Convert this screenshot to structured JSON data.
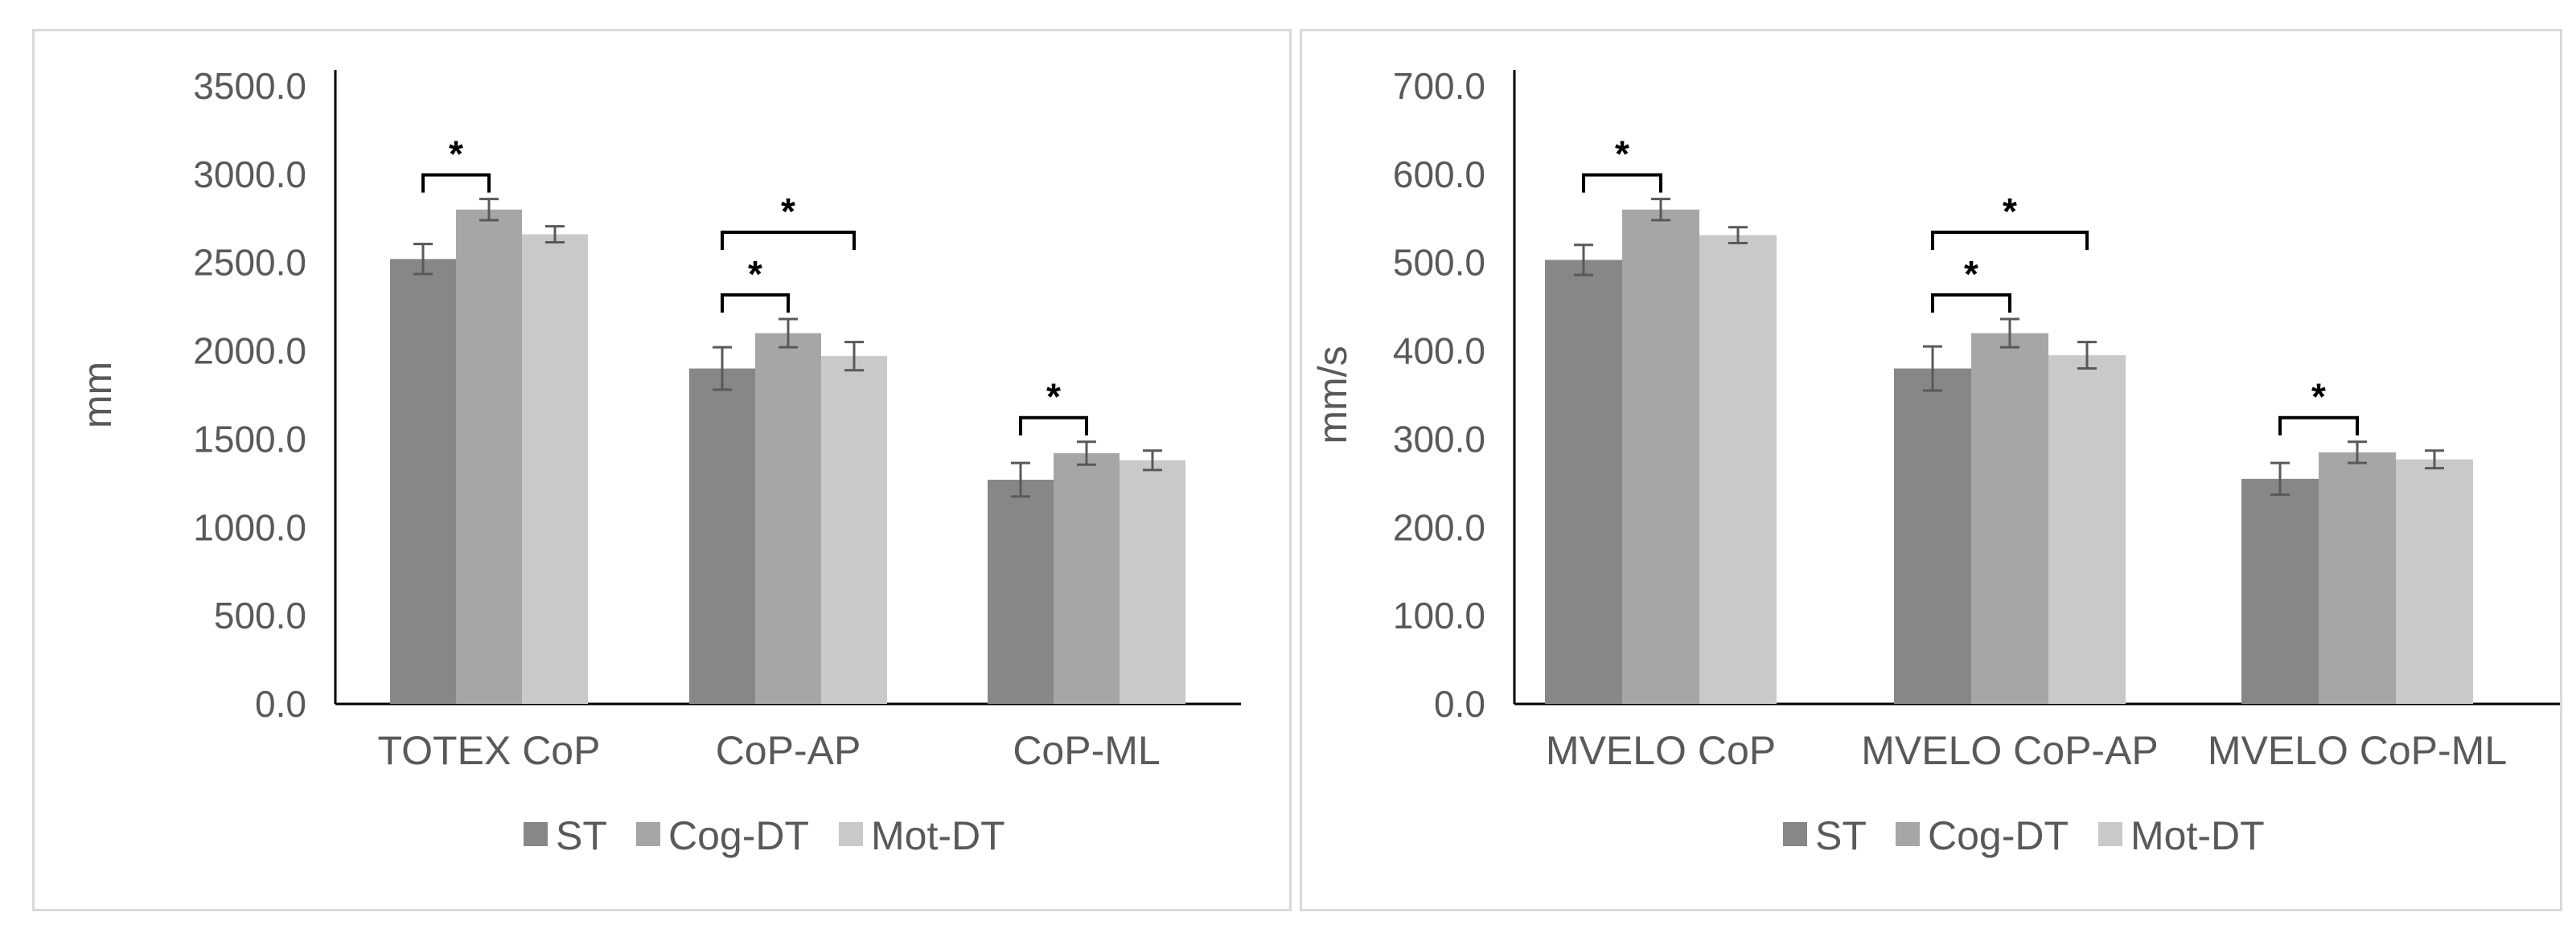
{
  "colors": {
    "ST": "#878787",
    "Cog-DT": "#a6a6a6",
    "Mot-DT": "#c9c9c9",
    "axis": "#000000",
    "error": "#595959",
    "text": "#595959"
  },
  "chart_data": [
    {
      "type": "bar",
      "ylabel": "mm",
      "xlabel": "",
      "ylim": [
        0,
        3500
      ],
      "yticks": [
        "0.0",
        "500.0",
        "1000.0",
        "1500.0",
        "2000.0",
        "2500.0",
        "3000.0",
        "3500.0"
      ],
      "ytick_values": [
        0,
        500,
        1000,
        1500,
        2000,
        2500,
        3000,
        3500
      ],
      "categories": [
        "TOTEX CoP",
        "CoP-AP",
        "CoP-ML"
      ],
      "series": [
        {
          "name": "ST",
          "values": [
            2520,
            1900,
            1270
          ],
          "errors": [
            85,
            120,
            95
          ]
        },
        {
          "name": "Cog-DT",
          "values": [
            2800,
            2100,
            1420
          ],
          "errors": [
            60,
            80,
            65
          ]
        },
        {
          "name": "Mot-DT",
          "values": [
            2660,
            1970,
            1380
          ],
          "errors": [
            45,
            80,
            55
          ]
        }
      ],
      "significance": [
        {
          "category": 0,
          "from": 0,
          "to": 1,
          "label": "*",
          "level": 0
        },
        {
          "category": 1,
          "from": 0,
          "to": 1,
          "label": "*",
          "level": 0
        },
        {
          "category": 1,
          "from": 0,
          "to": 2,
          "label": "*",
          "level": 1
        },
        {
          "category": 2,
          "from": 0,
          "to": 1,
          "label": "*",
          "level": 0
        }
      ],
      "legend": [
        "ST",
        "Cog-DT",
        "Mot-DT"
      ],
      "legend_position": "bottom",
      "grid": false
    },
    {
      "type": "bar",
      "ylabel": "mm/s",
      "xlabel": "",
      "ylim": [
        0,
        700
      ],
      "yticks": [
        "0.0",
        "100.0",
        "200.0",
        "300.0",
        "400.0",
        "500.0",
        "600.0",
        "700.0"
      ],
      "ytick_values": [
        0,
        100,
        200,
        300,
        400,
        500,
        600,
        700
      ],
      "categories": [
        "MVELO CoP",
        "MVELO CoP-AP",
        "MVELO CoP-ML"
      ],
      "series": [
        {
          "name": "ST",
          "values": [
            503,
            380,
            255
          ],
          "errors": [
            17,
            25,
            18
          ]
        },
        {
          "name": "Cog-DT",
          "values": [
            560,
            420,
            285
          ],
          "errors": [
            12,
            16,
            12
          ]
        },
        {
          "name": "Mot-DT",
          "values": [
            531,
            395,
            277
          ],
          "errors": [
            9,
            15,
            10
          ]
        }
      ],
      "significance": [
        {
          "category": 0,
          "from": 0,
          "to": 1,
          "label": "*",
          "level": 0
        },
        {
          "category": 1,
          "from": 0,
          "to": 1,
          "label": "*",
          "level": 0
        },
        {
          "category": 1,
          "from": 0,
          "to": 2,
          "label": "*",
          "level": 1
        },
        {
          "category": 2,
          "from": 0,
          "to": 1,
          "label": "*",
          "level": 0
        }
      ],
      "legend": [
        "ST",
        "Cog-DT",
        "Mot-DT"
      ],
      "legend_position": "bottom",
      "grid": false
    }
  ]
}
